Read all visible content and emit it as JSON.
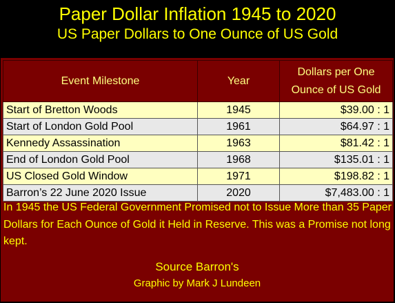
{
  "chart_data": {
    "type": "table",
    "title": "Paper Dollar Inflation 1945 to 2020",
    "subtitle": "US Paper Dollars to One Ounce of US Gold",
    "columns": [
      "Event Milestone",
      "Year",
      "Dollars per One Ounce of US Gold"
    ],
    "rows": [
      {
        "event": "Start of Bretton Woods",
        "year": "1945",
        "ratio": "$39.00 : 1"
      },
      {
        "event": "Start of London Gold Pool",
        "year": "1961",
        "ratio": "$64.97 : 1"
      },
      {
        "event": "Kennedy Assassination",
        "year": "1963",
        "ratio": "$81.42 : 1"
      },
      {
        "event": "End of London Gold Pool",
        "year": "1968",
        "ratio": "$135.01 : 1"
      },
      {
        "event": "US Closed Gold Window",
        "year": "1971",
        "ratio": "$198.82 : 1"
      },
      {
        "event": "Barron’s 22 June 2020 Issue",
        "year": "2020",
        "ratio": "$7,483.00 : 1"
      }
    ],
    "note": "In 1945 the US Federal Government Promised not to Issue More than 35 Paper Dollars for Each Ounce of Gold it Held in Reserve. This was a Promise not long kept.",
    "source": "Source Barron's",
    "credit": "Graphic by Mark J Lundeen"
  },
  "colors": {
    "background": "#000000",
    "panel": "#7a0000",
    "title_text": "#ffff00",
    "header_text": "#ffff80",
    "row_odd": "#ffffc0",
    "row_even": "#e8e8e8"
  }
}
